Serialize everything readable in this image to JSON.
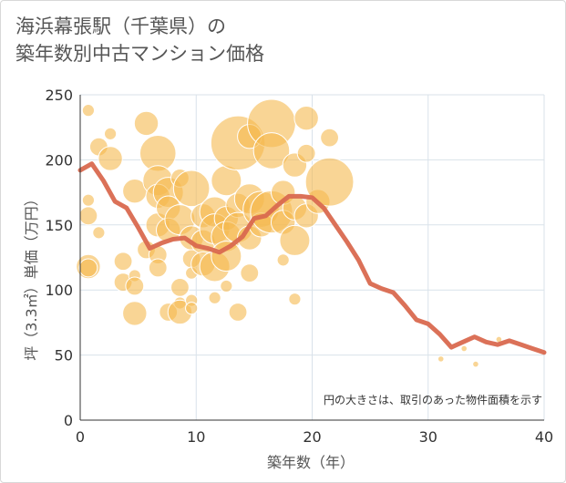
{
  "header": {
    "title_line1": "海浜幕張駅（千葉県）の",
    "title_line2": "築年数別中古マンション価格"
  },
  "chart_data": {
    "type": "scatter",
    "title": "海浜幕張駅（千葉県）の築年数別中古マンション価格",
    "xlabel": "築年数（年）",
    "ylabel": "坪（3.3㎡）単価（万円）",
    "xlim": [
      0,
      40
    ],
    "ylim": [
      0,
      250
    ],
    "x_ticks": [
      0,
      10,
      20,
      30,
      40
    ],
    "y_ticks": [
      0,
      50,
      100,
      150,
      200,
      250
    ],
    "grid": true,
    "note": "円の大きさは、取引のあった物件面積を示す",
    "colors": {
      "bubble": "#f5b94e",
      "line": "#d9694f",
      "grid": "#d9e2ea"
    },
    "series": [
      {
        "kind": "bubble",
        "points": [
          {
            "x": 0.7,
            "y": 238,
            "r": 2
          },
          {
            "x": 0.7,
            "y": 169,
            "r": 2
          },
          {
            "x": 0.7,
            "y": 157,
            "r": 3
          },
          {
            "x": 0.7,
            "y": 118,
            "r": 4
          },
          {
            "x": 0.7,
            "y": 117,
            "r": 3
          },
          {
            "x": 1.6,
            "y": 210,
            "r": 3
          },
          {
            "x": 1.6,
            "y": 144,
            "r": 2
          },
          {
            "x": 2.6,
            "y": 220,
            "r": 2
          },
          {
            "x": 2.6,
            "y": 201,
            "r": 4
          },
          {
            "x": 3.7,
            "y": 122,
            "r": 3
          },
          {
            "x": 3.7,
            "y": 106,
            "r": 3
          },
          {
            "x": 4.7,
            "y": 176,
            "r": 4
          },
          {
            "x": 4.7,
            "y": 111,
            "r": 2
          },
          {
            "x": 4.7,
            "y": 103,
            "r": 3
          },
          {
            "x": 4.7,
            "y": 82,
            "r": 4
          },
          {
            "x": 5.7,
            "y": 228,
            "r": 4
          },
          {
            "x": 5.7,
            "y": 131,
            "r": 3
          },
          {
            "x": 6.7,
            "y": 205,
            "r": 6
          },
          {
            "x": 6.7,
            "y": 184,
            "r": 5
          },
          {
            "x": 6.7,
            "y": 172,
            "r": 4
          },
          {
            "x": 6.7,
            "y": 150,
            "r": 4
          },
          {
            "x": 6.7,
            "y": 127,
            "r": 3
          },
          {
            "x": 6.7,
            "y": 117,
            "r": 3
          },
          {
            "x": 7.6,
            "y": 175,
            "r": 5
          },
          {
            "x": 7.6,
            "y": 163,
            "r": 4
          },
          {
            "x": 7.6,
            "y": 146,
            "r": 4
          },
          {
            "x": 7.6,
            "y": 83,
            "r": 3
          },
          {
            "x": 8.6,
            "y": 186,
            "r": 3
          },
          {
            "x": 8.6,
            "y": 154,
            "r": 5
          },
          {
            "x": 8.6,
            "y": 102,
            "r": 3
          },
          {
            "x": 8.6,
            "y": 90,
            "r": 2
          },
          {
            "x": 8.6,
            "y": 83,
            "r": 4
          },
          {
            "x": 9.6,
            "y": 178,
            "r": 6
          },
          {
            "x": 9.6,
            "y": 140,
            "r": 4
          },
          {
            "x": 9.6,
            "y": 124,
            "r": 3
          },
          {
            "x": 9.6,
            "y": 113,
            "r": 2
          },
          {
            "x": 9.6,
            "y": 92,
            "r": 2
          },
          {
            "x": 9.6,
            "y": 86,
            "r": 2
          },
          {
            "x": 10.6,
            "y": 157,
            "r": 4
          },
          {
            "x": 10.6,
            "y": 137,
            "r": 4
          },
          {
            "x": 10.6,
            "y": 120,
            "r": 4
          },
          {
            "x": 11.6,
            "y": 160,
            "r": 5
          },
          {
            "x": 11.6,
            "y": 147,
            "r": 5
          },
          {
            "x": 11.6,
            "y": 118,
            "r": 5
          },
          {
            "x": 11.6,
            "y": 94,
            "r": 2
          },
          {
            "x": 12.6,
            "y": 184,
            "r": 5
          },
          {
            "x": 12.6,
            "y": 155,
            "r": 4
          },
          {
            "x": 12.6,
            "y": 141,
            "r": 5
          },
          {
            "x": 12.6,
            "y": 126,
            "r": 5
          },
          {
            "x": 12.6,
            "y": 103,
            "r": 2
          },
          {
            "x": 13.6,
            "y": 213,
            "r": 9
          },
          {
            "x": 13.6,
            "y": 165,
            "r": 4
          },
          {
            "x": 13.6,
            "y": 148,
            "r": 5
          },
          {
            "x": 13.6,
            "y": 83,
            "r": 3
          },
          {
            "x": 14.6,
            "y": 218,
            "r": 4
          },
          {
            "x": 14.6,
            "y": 170,
            "r": 5
          },
          {
            "x": 14.6,
            "y": 140,
            "r": 4
          },
          {
            "x": 14.6,
            "y": 113,
            "r": 3
          },
          {
            "x": 15.6,
            "y": 162,
            "r": 6
          },
          {
            "x": 15.6,
            "y": 150,
            "r": 4
          },
          {
            "x": 16.5,
            "y": 228,
            "r": 8
          },
          {
            "x": 16.5,
            "y": 207,
            "r": 6
          },
          {
            "x": 16.5,
            "y": 160,
            "r": 7
          },
          {
            "x": 17.5,
            "y": 175,
            "r": 4
          },
          {
            "x": 17.5,
            "y": 152,
            "r": 4
          },
          {
            "x": 17.5,
            "y": 123,
            "r": 2
          },
          {
            "x": 18.5,
            "y": 196,
            "r": 4
          },
          {
            "x": 18.5,
            "y": 163,
            "r": 4
          },
          {
            "x": 18.5,
            "y": 138,
            "r": 5
          },
          {
            "x": 18.5,
            "y": 93,
            "r": 2
          },
          {
            "x": 19.5,
            "y": 232,
            "r": 4
          },
          {
            "x": 19.5,
            "y": 205,
            "r": 3
          },
          {
            "x": 19.5,
            "y": 157,
            "r": 4
          },
          {
            "x": 20.5,
            "y": 168,
            "r": 4
          },
          {
            "x": 21.5,
            "y": 217,
            "r": 3
          },
          {
            "x": 21.5,
            "y": 183,
            "r": 8
          },
          {
            "x": 31.1,
            "y": 47,
            "r": 1
          },
          {
            "x": 33.1,
            "y": 55,
            "r": 1
          },
          {
            "x": 34.1,
            "y": 43,
            "r": 1
          },
          {
            "x": 36.1,
            "y": 62,
            "r": 1
          }
        ]
      },
      {
        "kind": "line",
        "x": [
          0,
          1,
          2,
          3,
          4,
          5,
          6,
          7,
          8,
          9,
          10,
          11,
          12,
          13,
          14,
          15,
          16,
          17,
          18,
          19,
          20,
          21,
          22,
          23,
          24,
          25,
          26,
          27,
          28,
          29,
          30,
          31,
          32,
          33,
          34,
          35,
          36,
          37,
          38,
          39,
          40
        ],
        "y": [
          192,
          197,
          184,
          168,
          163,
          148,
          132,
          136,
          139,
          140,
          134,
          132,
          129,
          134,
          141,
          155,
          157,
          165,
          172,
          172,
          171,
          163,
          150,
          137,
          123,
          105,
          101,
          98,
          88,
          77,
          74,
          66,
          56,
          60,
          64,
          60,
          58,
          61,
          58,
          55,
          52
        ]
      }
    ]
  }
}
